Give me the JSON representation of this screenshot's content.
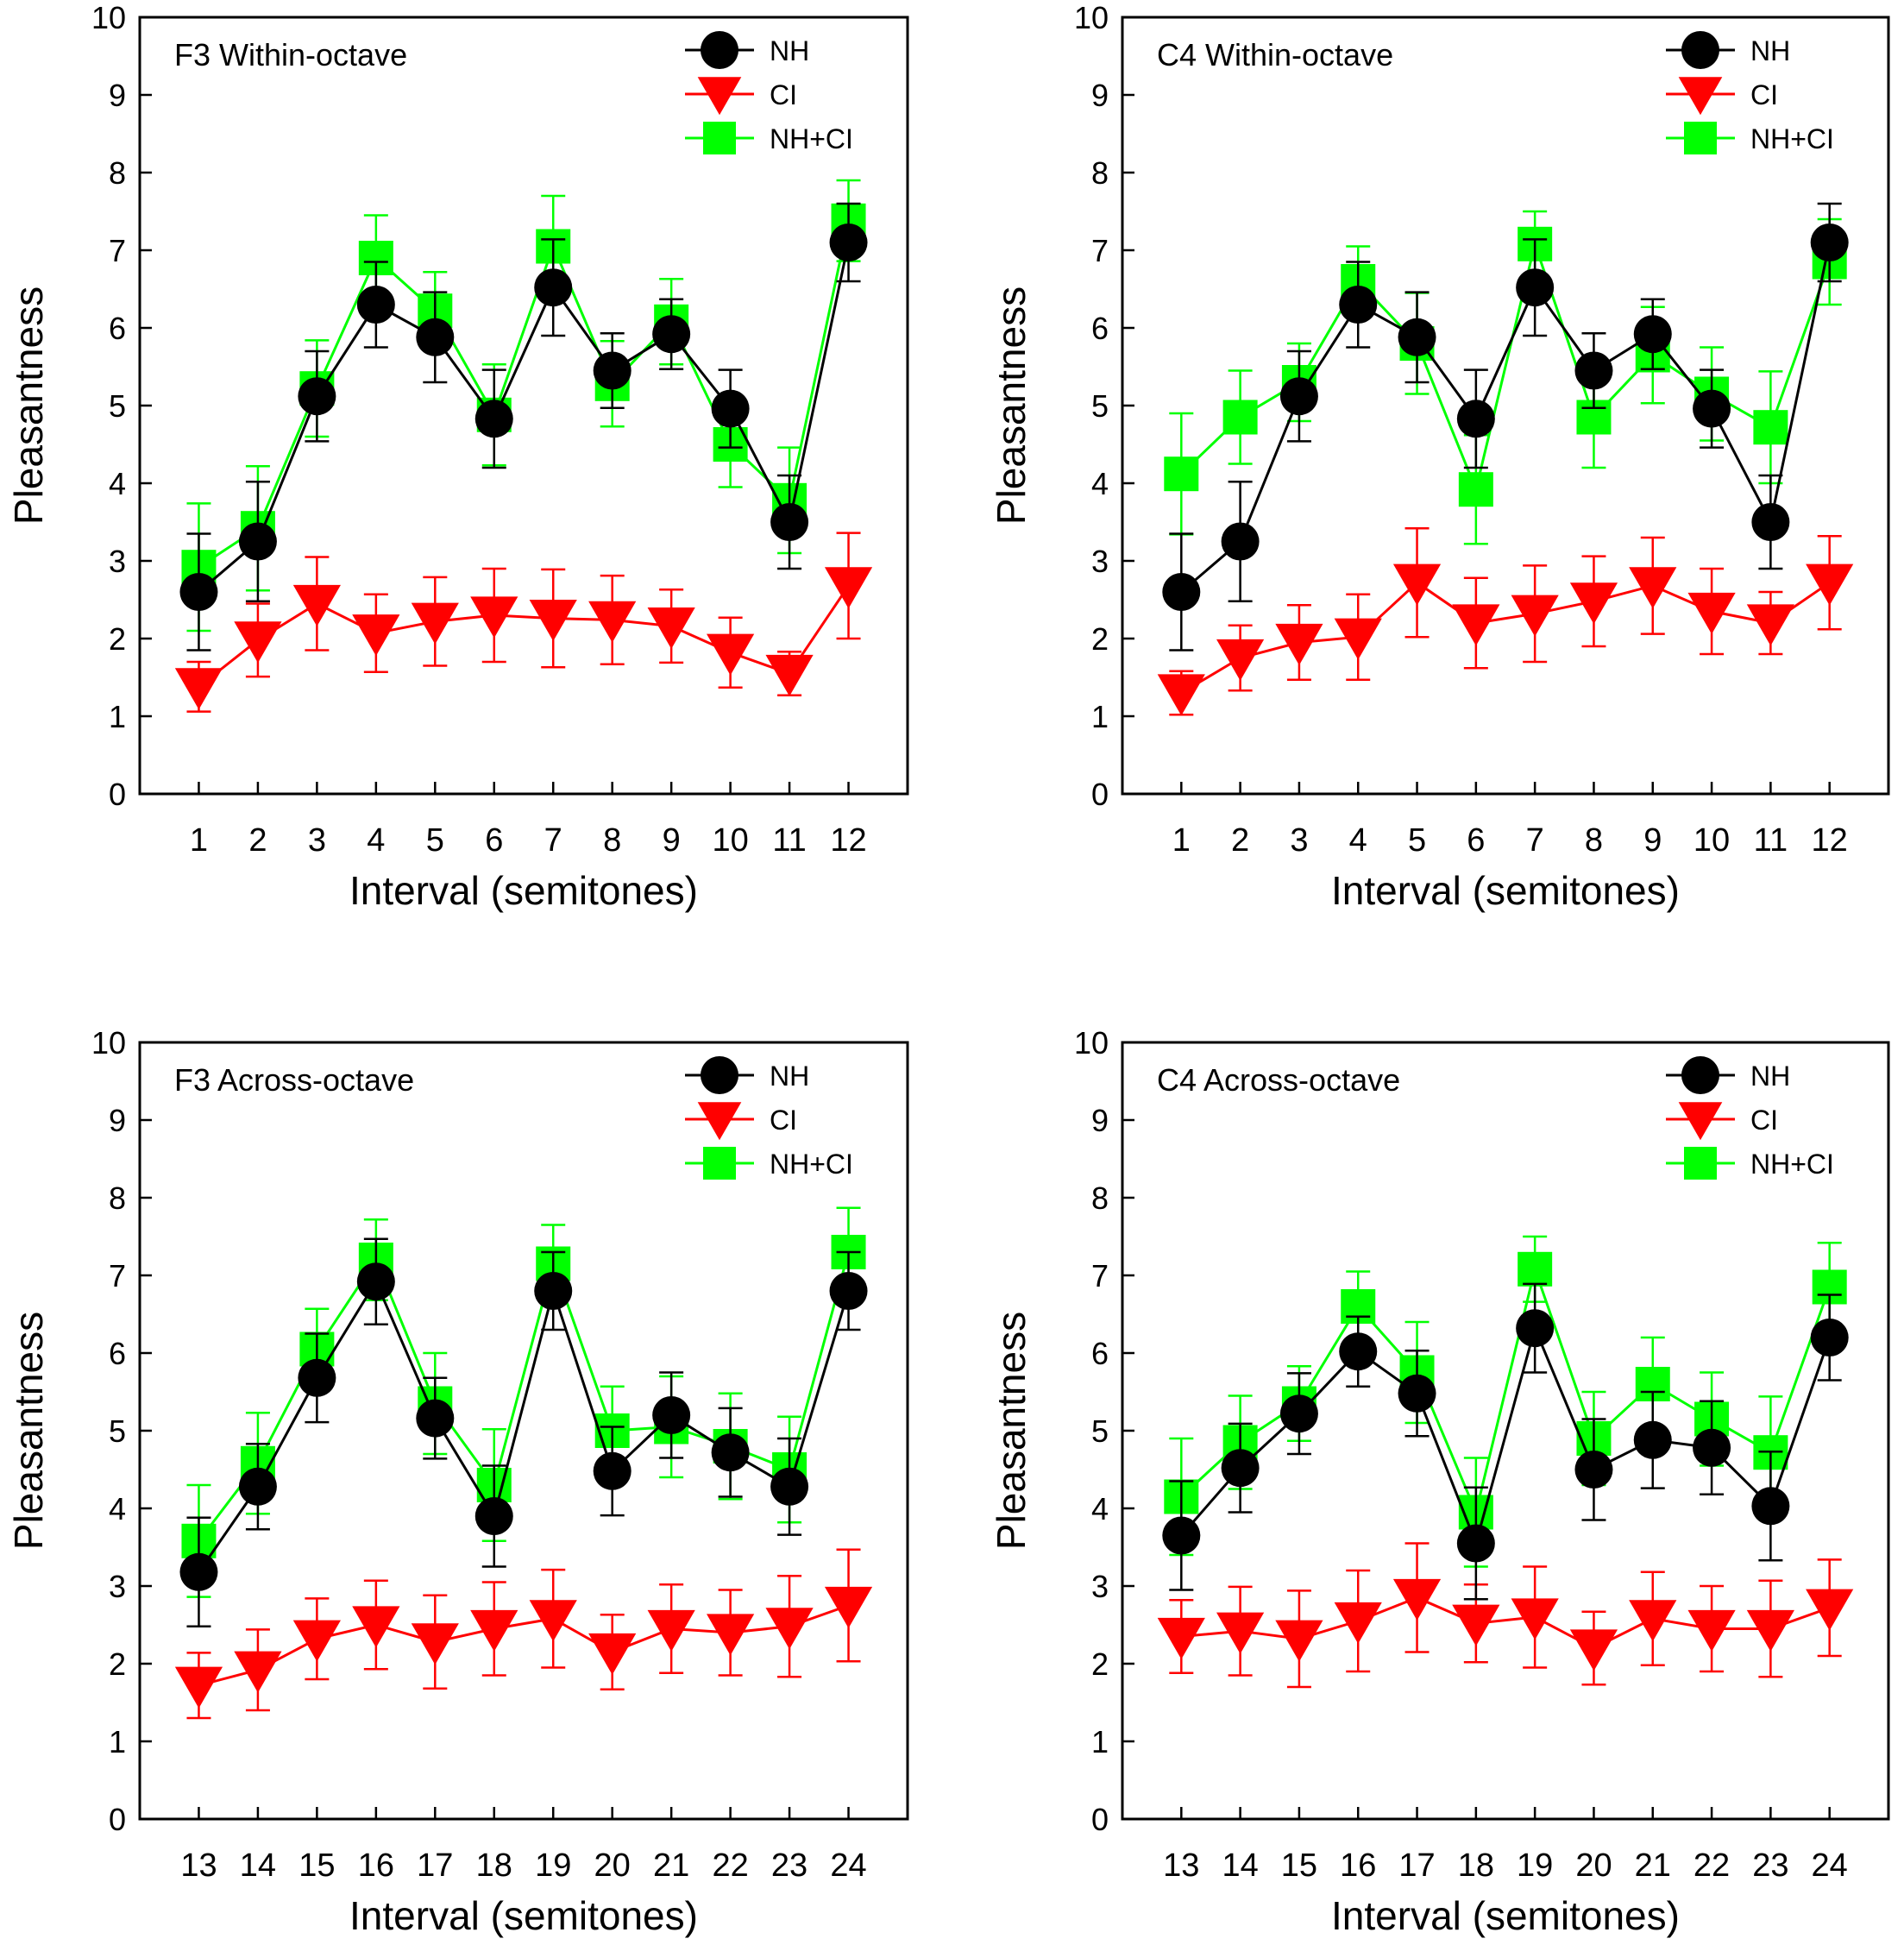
{
  "colors": {
    "NH": "#000000",
    "CI": "#ff0000",
    "NHCI": "#00ff00"
  },
  "chart_data": [
    {
      "type": "line",
      "title": "F3 Within-octave",
      "xlabel": "Interval (semitones)",
      "ylabel": "Pleasantness",
      "ylim": [
        0,
        10
      ],
      "yticks": [
        "0",
        "1",
        "2",
        "3",
        "4",
        "5",
        "6",
        "7",
        "8",
        "9",
        "10"
      ],
      "categories": [
        "1",
        "2",
        "3",
        "4",
        "5",
        "6",
        "7",
        "8",
        "9",
        "10",
        "11",
        "12"
      ],
      "legend": {
        "position": "top-right",
        "labels": [
          "NH",
          "CI",
          "NH+CI"
        ]
      },
      "series": [
        {
          "name": "NH",
          "marker": "circle",
          "values": [
            2.6,
            3.25,
            5.12,
            6.3,
            5.88,
            4.83,
            6.52,
            5.45,
            5.92,
            4.96,
            3.5,
            7.1
          ],
          "errors": [
            0.75,
            0.77,
            0.58,
            0.55,
            0.58,
            0.63,
            0.62,
            0.48,
            0.45,
            0.5,
            0.6,
            0.5
          ]
        },
        {
          "name": "CI",
          "marker": "triangle-down",
          "values": [
            1.38,
            1.98,
            2.45,
            2.07,
            2.22,
            2.3,
            2.26,
            2.24,
            2.16,
            1.82,
            1.55,
            2.68
          ],
          "errors": [
            0.32,
            0.47,
            0.6,
            0.5,
            0.57,
            0.6,
            0.63,
            0.57,
            0.47,
            0.45,
            0.28,
            0.68
          ]
        },
        {
          "name": "NH+CI",
          "marker": "square",
          "values": [
            2.92,
            3.42,
            5.22,
            6.9,
            6.22,
            4.88,
            7.05,
            5.28,
            6.08,
            4.5,
            3.78,
            7.38
          ],
          "errors": [
            0.82,
            0.8,
            0.62,
            0.55,
            0.5,
            0.65,
            0.65,
            0.55,
            0.55,
            0.55,
            0.68,
            0.52
          ]
        }
      ]
    },
    {
      "type": "line",
      "title": "C4 Within-octave",
      "xlabel": "Interval (semitones)",
      "ylabel": "Pleasantness",
      "ylim": [
        0,
        10
      ],
      "yticks": [
        "0",
        "1",
        "2",
        "3",
        "4",
        "5",
        "6",
        "7",
        "8",
        "9",
        "10"
      ],
      "categories": [
        "1",
        "2",
        "3",
        "4",
        "5",
        "6",
        "7",
        "8",
        "9",
        "10",
        "11",
        "12"
      ],
      "legend": {
        "position": "top-right",
        "labels": [
          "NH",
          "CI",
          "NH+CI"
        ]
      },
      "series": [
        {
          "name": "NH",
          "marker": "circle",
          "values": [
            2.6,
            3.25,
            5.12,
            6.3,
            5.88,
            4.83,
            6.52,
            5.45,
            5.92,
            4.96,
            3.5,
            7.1
          ],
          "errors": [
            0.75,
            0.77,
            0.58,
            0.55,
            0.58,
            0.63,
            0.62,
            0.48,
            0.45,
            0.5,
            0.6,
            0.5
          ]
        },
        {
          "name": "CI",
          "marker": "triangle-down",
          "values": [
            1.3,
            1.75,
            1.95,
            2.02,
            2.72,
            2.2,
            2.32,
            2.48,
            2.68,
            2.35,
            2.2,
            2.72
          ],
          "errors": [
            0.28,
            0.42,
            0.48,
            0.55,
            0.7,
            0.58,
            0.62,
            0.58,
            0.62,
            0.55,
            0.4,
            0.6
          ]
        },
        {
          "name": "NH+CI",
          "marker": "square",
          "values": [
            4.12,
            4.85,
            5.3,
            6.6,
            5.8,
            3.92,
            7.08,
            4.85,
            5.65,
            5.15,
            4.72,
            6.85
          ],
          "errors": [
            0.78,
            0.6,
            0.5,
            0.45,
            0.65,
            0.7,
            0.42,
            0.65,
            0.62,
            0.6,
            0.72,
            0.55
          ]
        }
      ]
    },
    {
      "type": "line",
      "title": "F3 Across-octave",
      "xlabel": "Interval (semitones)",
      "ylabel": "Pleasantness",
      "ylim": [
        0,
        10
      ],
      "yticks": [
        "0",
        "1",
        "2",
        "3",
        "4",
        "5",
        "6",
        "7",
        "8",
        "9",
        "10"
      ],
      "categories": [
        "13",
        "14",
        "15",
        "16",
        "17",
        "18",
        "19",
        "20",
        "21",
        "22",
        "23",
        "24"
      ],
      "legend": {
        "position": "top-right",
        "labels": [
          "NH",
          "CI",
          "NH+CI"
        ]
      },
      "series": [
        {
          "name": "NH",
          "marker": "circle",
          "values": [
            3.18,
            4.28,
            5.68,
            6.92,
            5.16,
            3.9,
            6.8,
            4.48,
            5.2,
            4.72,
            4.28,
            6.8
          ],
          "errors": [
            0.7,
            0.55,
            0.57,
            0.55,
            0.52,
            0.65,
            0.5,
            0.57,
            0.55,
            0.57,
            0.62,
            0.5
          ]
        },
        {
          "name": "CI",
          "marker": "triangle-down",
          "values": [
            1.72,
            1.92,
            2.32,
            2.5,
            2.28,
            2.45,
            2.58,
            2.15,
            2.45,
            2.4,
            2.48,
            2.75
          ],
          "errors": [
            0.42,
            0.52,
            0.52,
            0.57,
            0.6,
            0.6,
            0.63,
            0.48,
            0.57,
            0.55,
            0.65,
            0.72
          ]
        },
        {
          "name": "NH+CI",
          "marker": "square",
          "values": [
            3.58,
            4.58,
            6.05,
            7.2,
            5.35,
            4.3,
            7.15,
            5.0,
            5.05,
            4.8,
            4.5,
            7.3
          ],
          "errors": [
            0.72,
            0.65,
            0.52,
            0.52,
            0.65,
            0.72,
            0.5,
            0.57,
            0.65,
            0.68,
            0.68,
            0.57
          ]
        }
      ]
    },
    {
      "type": "line",
      "title": "C4 Across-octave",
      "xlabel": "Interval (semitones)",
      "ylabel": "Pleasantness",
      "ylim": [
        0,
        10
      ],
      "yticks": [
        "0",
        "1",
        "2",
        "3",
        "4",
        "5",
        "6",
        "7",
        "8",
        "9",
        "10"
      ],
      "categories": [
        "13",
        "14",
        "15",
        "16",
        "17",
        "18",
        "19",
        "20",
        "21",
        "22",
        "23",
        "24"
      ],
      "legend": {
        "position": "top-right",
        "labels": [
          "NH",
          "CI",
          "NH+CI"
        ]
      },
      "series": [
        {
          "name": "NH",
          "marker": "circle",
          "values": [
            3.65,
            4.52,
            5.22,
            6.02,
            5.48,
            3.55,
            6.32,
            4.5,
            4.88,
            4.78,
            4.03,
            6.2
          ],
          "errors": [
            0.7,
            0.57,
            0.52,
            0.45,
            0.55,
            0.72,
            0.57,
            0.65,
            0.62,
            0.6,
            0.7,
            0.55
          ]
        },
        {
          "name": "CI",
          "marker": "triangle-down",
          "values": [
            2.35,
            2.42,
            2.32,
            2.55,
            2.85,
            2.52,
            2.6,
            2.2,
            2.58,
            2.45,
            2.45,
            2.72
          ],
          "errors": [
            0.47,
            0.57,
            0.62,
            0.65,
            0.7,
            0.5,
            0.65,
            0.47,
            0.6,
            0.55,
            0.62,
            0.62
          ]
        },
        {
          "name": "NH+CI",
          "marker": "square",
          "values": [
            4.15,
            4.85,
            5.35,
            6.6,
            5.75,
            3.95,
            7.08,
            4.9,
            5.6,
            5.15,
            4.72,
            6.85
          ],
          "errors": [
            0.75,
            0.6,
            0.48,
            0.45,
            0.65,
            0.7,
            0.42,
            0.6,
            0.6,
            0.6,
            0.72,
            0.57
          ]
        }
      ]
    }
  ]
}
